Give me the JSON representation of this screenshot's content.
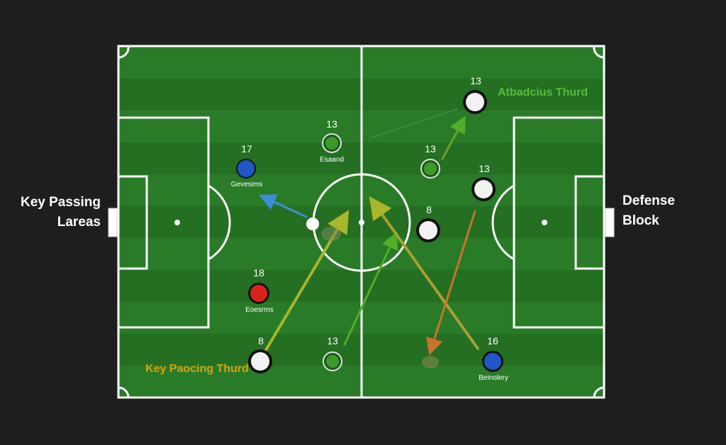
{
  "side_labels": {
    "left": [
      "Key Passing",
      "Lareas"
    ],
    "right": [
      "Defense",
      "Block"
    ]
  },
  "zone_labels": {
    "top_right": "Atbadcius Thurd",
    "bottom_left": "Key Paocing Thurd"
  },
  "colors": {
    "background": "#1e1e1e",
    "pitch_dark": "#1f6a1f",
    "pitch_light": "#2b7d29",
    "line": "#ffffff",
    "zone_top_right": "#5cb83a",
    "zone_bottom_left": "#d4a20a",
    "arrow_blue": "#3a8fd8",
    "arrow_yellow": "#a9b52a",
    "arrow_green": "#4fae2a",
    "arrow_orange": "#c9742a"
  },
  "players": [
    {
      "number": "17",
      "caption": "Gevesims",
      "color": "blue-dot"
    },
    {
      "number": "13",
      "caption": "Esaand",
      "color": "green-ring"
    },
    {
      "number": "18",
      "caption": "Eoesrms",
      "color": "red-dot"
    },
    {
      "number": "8",
      "caption": "",
      "color": "white-dot"
    },
    {
      "number": "13",
      "caption": "",
      "color": "green-ring"
    },
    {
      "number": "13",
      "caption": "",
      "color": "white-dot"
    },
    {
      "number": "13",
      "caption": "",
      "color": "green-ring"
    },
    {
      "number": "13",
      "caption": "",
      "color": "white-dot"
    },
    {
      "number": "8",
      "caption": "",
      "color": "white-dot"
    },
    {
      "number": "16",
      "caption": "Beinolery",
      "color": "blue-dot"
    }
  ],
  "arrows": [
    {
      "name": "pass-arrow-blue",
      "color": "blue"
    },
    {
      "name": "pass-arrow-yellow",
      "color": "yellow"
    },
    {
      "name": "pass-arrow-green-left",
      "color": "green"
    },
    {
      "name": "pass-arrow-green-top",
      "color": "green"
    },
    {
      "name": "pass-arrow-green-small",
      "color": "green"
    },
    {
      "name": "pass-arrow-yellow-right",
      "color": "yellow"
    },
    {
      "name": "pass-arrow-orange",
      "color": "orange"
    }
  ]
}
